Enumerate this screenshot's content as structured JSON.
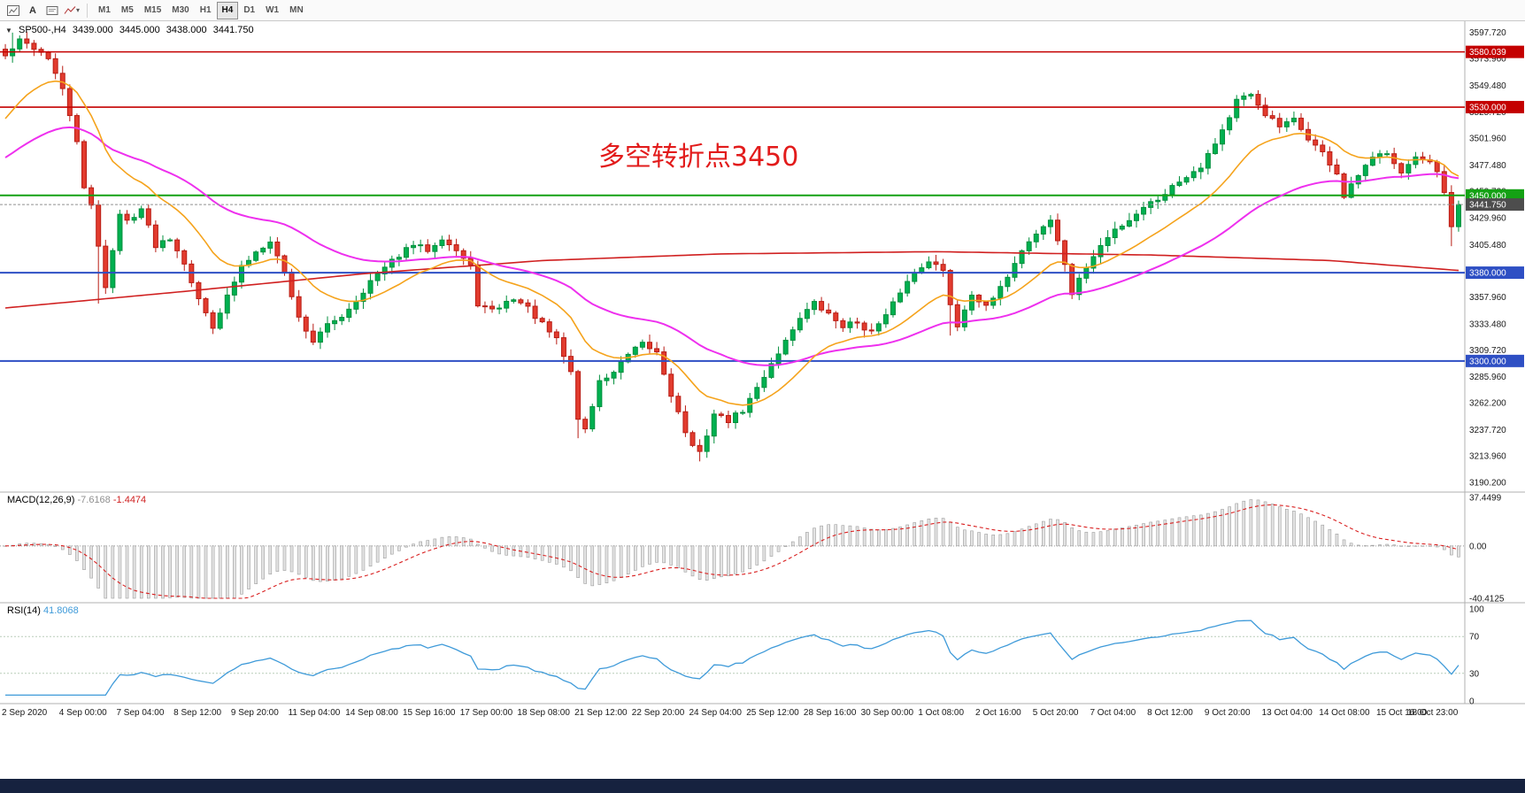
{
  "toolbar": {
    "icon_names": [
      "chart-window-icon",
      "text-label-icon",
      "text-box-icon",
      "polyline-tool-icon",
      "dropdown-caret-icon"
    ],
    "text_tool_glyph": "A",
    "caret_glyph": "▾",
    "timeframes": [
      "M1",
      "M5",
      "M15",
      "M30",
      "H1",
      "H4",
      "D1",
      "W1",
      "MN"
    ],
    "active_timeframe": "H4"
  },
  "chart": {
    "collapse_glyph": "▼",
    "title": "SP500-,H4",
    "ohlc": {
      "open": "3439.000",
      "high": "3445.000",
      "low": "3438.000",
      "close": "3441.750"
    },
    "annotation": {
      "text": "多空转折点3450",
      "color": "#e21b1b"
    }
  },
  "macd_label": {
    "name": "MACD(12,26,9)",
    "main_value": "-7.6168",
    "signal_value": "-1.4474"
  },
  "rsi_label": {
    "name": "RSI(14)",
    "value": "41.8068"
  },
  "chart_data": {
    "type": "candlestick",
    "symbol": "SP500-",
    "timeframe": "H4",
    "bars": 204,
    "price_axis": {
      "view_max": 3603,
      "view_min": 3186,
      "ticks": [
        "3597.720",
        "3573.960",
        "3549.480",
        "3525.720",
        "3501.960",
        "3477.480",
        "3453.720",
        "3429.960",
        "3405.480",
        "3381.720",
        "3357.960",
        "3333.480",
        "3309.720",
        "3285.960",
        "3262.200",
        "3237.720",
        "3213.960",
        "3190.200"
      ]
    },
    "hlines": [
      {
        "price": 3580.039,
        "label": "3580.039",
        "color": "#c40000",
        "width": 1.4
      },
      {
        "price": 3530.0,
        "label": "3530.000",
        "color": "#c40000",
        "width": 1.6
      },
      {
        "price": 3450.0,
        "label": "3450.000",
        "color": "#14a114",
        "width": 2
      },
      {
        "price": 3380.0,
        "label": "3380.000",
        "color": "#2e4fc4",
        "width": 2
      },
      {
        "price": 3300.0,
        "label": "3300.000",
        "color": "#2e4fc4",
        "width": 2
      }
    ],
    "current_price": {
      "price": 3441.75,
      "label": "3441.750",
      "badge_color": "#4d4d4d",
      "line_color": "#909090"
    },
    "candle_colors": {
      "up_fill": "#00b050",
      "up_stroke": "#008f3c",
      "down_fill": "#e23b2e",
      "down_stroke": "#b81c14"
    },
    "close_waypoints": [
      [
        0,
        3576
      ],
      [
        2,
        3590
      ],
      [
        4,
        3584
      ],
      [
        6,
        3575
      ],
      [
        8,
        3545
      ],
      [
        10,
        3500
      ],
      [
        11,
        3455
      ],
      [
        12,
        3440
      ],
      [
        13,
        3405
      ],
      [
        14,
        3368
      ],
      [
        16,
        3432
      ],
      [
        17,
        3427
      ],
      [
        19,
        3438
      ],
      [
        21,
        3405
      ],
      [
        23,
        3412
      ],
      [
        25,
        3390
      ],
      [
        27,
        3355
      ],
      [
        29,
        3332
      ],
      [
        31,
        3358
      ],
      [
        33,
        3385
      ],
      [
        35,
        3399
      ],
      [
        37,
        3410
      ],
      [
        39,
        3380
      ],
      [
        41,
        3339
      ],
      [
        43,
        3318
      ],
      [
        45,
        3332
      ],
      [
        47,
        3341
      ],
      [
        49,
        3355
      ],
      [
        51,
        3372
      ],
      [
        53,
        3384
      ],
      [
        55,
        3396
      ],
      [
        57,
        3405
      ],
      [
        59,
        3401
      ],
      [
        61,
        3412
      ],
      [
        63,
        3400
      ],
      [
        65,
        3385
      ],
      [
        66,
        3352
      ],
      [
        68,
        3345
      ],
      [
        71,
        3357
      ],
      [
        73,
        3348
      ],
      [
        75,
        3333
      ],
      [
        77,
        3319
      ],
      [
        79,
        3290
      ],
      [
        80,
        3248
      ],
      [
        81,
        3238
      ],
      [
        83,
        3281
      ],
      [
        85,
        3290
      ],
      [
        87,
        3305
      ],
      [
        89,
        3315
      ],
      [
        91,
        3308
      ],
      [
        93,
        3270
      ],
      [
        95,
        3236
      ],
      [
        96,
        3222
      ],
      [
        97,
        3216
      ],
      [
        99,
        3252
      ],
      [
        101,
        3246
      ],
      [
        103,
        3255
      ],
      [
        105,
        3275
      ],
      [
        107,
        3298
      ],
      [
        109,
        3318
      ],
      [
        111,
        3340
      ],
      [
        113,
        3352
      ],
      [
        115,
        3342
      ],
      [
        117,
        3332
      ],
      [
        119,
        3335
      ],
      [
        121,
        3326
      ],
      [
        123,
        3340
      ],
      [
        125,
        3363
      ],
      [
        127,
        3380
      ],
      [
        129,
        3392
      ],
      [
        131,
        3381
      ],
      [
        132,
        3352
      ],
      [
        133,
        3332
      ],
      [
        135,
        3362
      ],
      [
        137,
        3348
      ],
      [
        139,
        3365
      ],
      [
        141,
        3390
      ],
      [
        143,
        3409
      ],
      [
        145,
        3422
      ],
      [
        146,
        3428
      ],
      [
        148,
        3388
      ],
      [
        149,
        3361
      ],
      [
        151,
        3385
      ],
      [
        153,
        3404
      ],
      [
        155,
        3419
      ],
      [
        157,
        3428
      ],
      [
        159,
        3440
      ],
      [
        161,
        3447
      ],
      [
        163,
        3458
      ],
      [
        165,
        3468
      ],
      [
        167,
        3477
      ],
      [
        169,
        3498
      ],
      [
        171,
        3521
      ],
      [
        172,
        3536
      ],
      [
        174,
        3540
      ],
      [
        176,
        3524
      ],
      [
        178,
        3512
      ],
      [
        180,
        3518
      ],
      [
        182,
        3502
      ],
      [
        184,
        3488
      ],
      [
        186,
        3470
      ],
      [
        187,
        3448
      ],
      [
        189,
        3468
      ],
      [
        191,
        3483
      ],
      [
        193,
        3490
      ],
      [
        195,
        3472
      ],
      [
        197,
        3484
      ],
      [
        199,
        3478
      ],
      [
        200,
        3470
      ],
      [
        201,
        3452
      ],
      [
        202,
        3420
      ],
      [
        203,
        3441.75
      ]
    ],
    "wick_overrides": [
      [
        1,
        "high",
        3597.5
      ],
      [
        2,
        "high",
        3595
      ],
      [
        13,
        "low",
        3352
      ],
      [
        80,
        "low",
        3230
      ],
      [
        97,
        "low",
        3209
      ],
      [
        132,
        "low",
        3323
      ],
      [
        172,
        "high",
        3541
      ],
      [
        174,
        "high",
        3543
      ],
      [
        202,
        "low",
        3404
      ]
    ],
    "moving_averages": {
      "fast": {
        "name": "ma-fast-orange",
        "color": "#f5a31c",
        "period": 16,
        "init": 3512,
        "width": 1.6
      },
      "mid": {
        "name": "ma-mid-magenta",
        "color": "#ee30ee",
        "period": 45,
        "init": 3480,
        "width": 2
      },
      "slow_color": "#d02020",
      "slow_width": 1.6,
      "slow_waypoints": [
        [
          0,
          3348
        ],
        [
          25,
          3363
        ],
        [
          50,
          3379
        ],
        [
          75,
          3391
        ],
        [
          100,
          3397
        ],
        [
          130,
          3399
        ],
        [
          160,
          3396
        ],
        [
          185,
          3391
        ],
        [
          203,
          3382
        ]
      ]
    },
    "macd": {
      "fast": 12,
      "slow": 26,
      "signal": 9,
      "axis_max": 37.4499,
      "axis_min": -40.4125,
      "tick_labels": [
        "37.4499",
        "0.00",
        "-40.4125"
      ],
      "hist_fill": "#e3e3e3",
      "hist_stroke": "#9e9e9e",
      "signal_color": "#d92020"
    },
    "rsi": {
      "period": 14,
      "levels": [
        "100",
        "70",
        "30",
        "0"
      ],
      "dashed_levels": [
        70,
        30
      ],
      "line_color": "#3e9ad9"
    },
    "time_axis": {
      "bars_per_label": 8,
      "labels": [
        "2 Sep 2020",
        "4 Sep 00:00",
        "7 Sep 04:00",
        "8 Sep 12:00",
        "9 Sep 20:00",
        "11 Sep 04:00",
        "14 Sep 08:00",
        "15 Sep 16:00",
        "17 Sep 00:00",
        "18 Sep 08:00",
        "21 Sep 12:00",
        "22 Sep 20:00",
        "24 Sep 04:00",
        "25 Sep 12:00",
        "28 Sep 16:00",
        "30 Sep 00:00",
        "1 Oct 08:00",
        "2 Oct 16:00",
        "5 Oct 20:00",
        "7 Oct 04:00",
        "8 Oct 12:00",
        "9 Oct 20:00",
        "13 Oct 04:00",
        "14 Oct 08:00",
        "15 Oct 16:00",
        "18 Oct 23:00"
      ]
    }
  }
}
